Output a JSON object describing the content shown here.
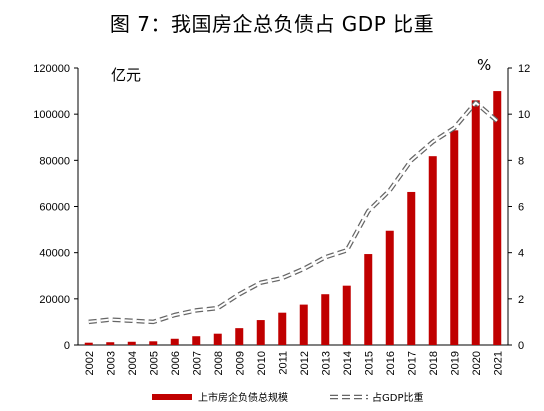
{
  "title": "图 7：我国房企总负债占 GDP 比重",
  "left_unit": "亿元",
  "right_unit": "%",
  "chart_data": {
    "type": "bar",
    "categories": [
      "2002",
      "2003",
      "2004",
      "2005",
      "2006",
      "2007",
      "2008",
      "2009",
      "2010",
      "2011",
      "2012",
      "2013",
      "2014",
      "2015",
      "2016",
      "2017",
      "2018",
      "2019",
      "2020",
      "2021"
    ],
    "series": [
      {
        "name": "上市房企负债总规模",
        "type": "bar",
        "axis": "left",
        "color": "#c00000",
        "values": [
          1000,
          1200,
          1400,
          1600,
          2700,
          3800,
          4900,
          7300,
          10800,
          14000,
          17500,
          22000,
          25700,
          39400,
          49500,
          66300,
          81800,
          93000,
          106000,
          110000
        ]
      },
      {
        "name": "占GDP比重",
        "type": "line",
        "axis": "right",
        "style": "dashed-outline",
        "values": [
          1.0,
          1.1,
          1.05,
          1.0,
          1.3,
          1.5,
          1.6,
          2.2,
          2.7,
          2.9,
          3.3,
          3.8,
          4.1,
          5.8,
          6.7,
          8.0,
          8.8,
          9.4,
          10.5,
          9.7
        ]
      }
    ],
    "ylim_left": [
      0,
      120000
    ],
    "ylim_right": [
      0,
      12
    ],
    "yticks_left": [
      "0",
      "20000",
      "40000",
      "60000",
      "80000",
      "100000",
      "120000"
    ],
    "yticks_right": [
      "0",
      "2",
      "4",
      "6",
      "8",
      "10",
      "12"
    ],
    "legend_position": "bottom",
    "grid": false
  }
}
